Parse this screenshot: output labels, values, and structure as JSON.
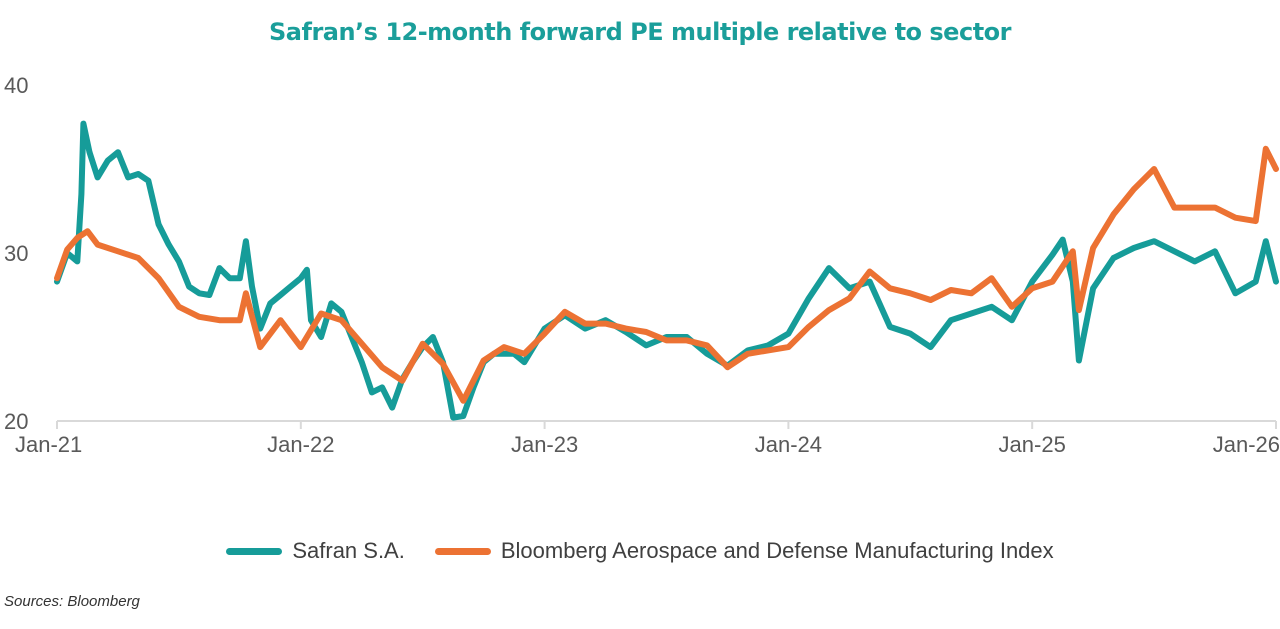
{
  "chart_data": {
    "type": "line",
    "title": "Safran’s 12-month forward PE multiple relative to sector",
    "xlabel": "",
    "ylabel": "",
    "ylim": [
      20,
      40
    ],
    "xlim": [
      "2021-01",
      "2026-01"
    ],
    "y_ticks": [
      "20",
      "30",
      "40"
    ],
    "x_ticks": [
      {
        "label": "Jan-21",
        "date": "2021-01"
      },
      {
        "label": "Jan-22",
        "date": "2022-01"
      },
      {
        "label": "Jan-23",
        "date": "2023-01"
      },
      {
        "label": "Jan-24",
        "date": "2024-01"
      },
      {
        "label": "Jan-25",
        "date": "2025-01"
      },
      {
        "label": "Jan-26",
        "date": "2026-01"
      }
    ],
    "grid": false,
    "legend": "bottom",
    "series": [
      {
        "name": "Safran S.A.",
        "color": "#169c99",
        "points": [
          [
            "2021-01",
            28.3
          ],
          [
            "2021-01.5",
            30.0
          ],
          [
            "2021-02",
            29.5
          ],
          [
            "2021-02.2",
            33.5
          ],
          [
            "2021-02.3",
            37.7
          ],
          [
            "2021-02.6",
            36.0
          ],
          [
            "2021-03",
            34.5
          ],
          [
            "2021-03.5",
            35.5
          ],
          [
            "2021-04",
            36.0
          ],
          [
            "2021-04.5",
            34.5
          ],
          [
            "2021-05",
            34.7
          ],
          [
            "2021-05.5",
            34.3
          ],
          [
            "2021-06",
            31.7
          ],
          [
            "2021-06.5",
            30.5
          ],
          [
            "2021-07",
            29.5
          ],
          [
            "2021-07.5",
            28.0
          ],
          [
            "2021-08",
            27.6
          ],
          [
            "2021-08.5",
            27.5
          ],
          [
            "2021-09",
            29.1
          ],
          [
            "2021-09.5",
            28.5
          ],
          [
            "2021-10",
            28.5
          ],
          [
            "2021-10.3",
            30.7
          ],
          [
            "2021-10.6",
            28.0
          ],
          [
            "2021-11",
            25.5
          ],
          [
            "2021-11.5",
            27.0
          ],
          [
            "2021-12",
            27.5
          ],
          [
            "2021-12.5",
            28.0
          ],
          [
            "2022-01",
            28.5
          ],
          [
            "2022-01.3",
            29.0
          ],
          [
            "2022-01.5",
            26.0
          ],
          [
            "2022-02",
            25.0
          ],
          [
            "2022-02.5",
            27.0
          ],
          [
            "2022-03",
            26.5
          ],
          [
            "2022-03.5",
            25.0
          ],
          [
            "2022-04",
            23.5
          ],
          [
            "2022-04.5",
            21.7
          ],
          [
            "2022-05",
            22.0
          ],
          [
            "2022-05.5",
            20.8
          ],
          [
            "2022-06",
            22.5
          ],
          [
            "2022-06.5",
            23.5
          ],
          [
            "2022-07",
            24.4
          ],
          [
            "2022-07.5",
            25.0
          ],
          [
            "2022-08",
            23.5
          ],
          [
            "2022-08.5",
            20.2
          ],
          [
            "2022-09",
            20.3
          ],
          [
            "2022-09.5",
            22.0
          ],
          [
            "2022-10",
            23.5
          ],
          [
            "2022-10.5",
            24.0
          ],
          [
            "2022-11",
            24.0
          ],
          [
            "2022-11.5",
            24.0
          ],
          [
            "2022-12",
            23.5
          ],
          [
            "2023-01",
            25.5
          ],
          [
            "2023-02",
            26.3
          ],
          [
            "2023-03",
            25.5
          ],
          [
            "2023-04",
            26.0
          ],
          [
            "2023-05",
            25.3
          ],
          [
            "2023-06",
            24.5
          ],
          [
            "2023-07",
            25.0
          ],
          [
            "2023-08",
            25.0
          ],
          [
            "2023-09",
            24.0
          ],
          [
            "2023-10",
            23.3
          ],
          [
            "2023-11",
            24.2
          ],
          [
            "2023-12",
            24.5
          ],
          [
            "2024-01",
            25.2
          ],
          [
            "2024-02",
            27.3
          ],
          [
            "2024-03",
            29.1
          ],
          [
            "2024-04",
            27.9
          ],
          [
            "2024-05",
            28.3
          ],
          [
            "2024-06",
            25.6
          ],
          [
            "2024-07",
            25.2
          ],
          [
            "2024-08",
            24.4
          ],
          [
            "2024-09",
            26.0
          ],
          [
            "2024-10",
            26.4
          ],
          [
            "2024-11",
            26.8
          ],
          [
            "2024-12",
            26.0
          ],
          [
            "2025-01",
            28.3
          ],
          [
            "2025-02",
            29.9
          ],
          [
            "2025-02.5",
            30.8
          ],
          [
            "2025-03",
            28.3
          ],
          [
            "2025-03.3",
            23.6
          ],
          [
            "2025-04",
            27.9
          ],
          [
            "2025-05",
            29.7
          ],
          [
            "2025-06",
            30.3
          ],
          [
            "2025-07",
            30.7
          ],
          [
            "2025-08",
            30.1
          ],
          [
            "2025-09",
            29.5
          ],
          [
            "2025-10",
            30.1
          ],
          [
            "2025-11",
            27.6
          ],
          [
            "2025-12",
            28.3
          ],
          [
            "2025-12.5",
            30.7
          ],
          [
            "2026-01",
            28.3
          ]
        ]
      },
      {
        "name": "Bloomberg Aerospace and Defense Manufacturing Index",
        "color": "#ec7233",
        "points": [
          [
            "2021-01",
            28.5
          ],
          [
            "2021-01.5",
            30.2
          ],
          [
            "2021-02",
            30.9
          ],
          [
            "2021-02.5",
            31.3
          ],
          [
            "2021-03",
            30.5
          ],
          [
            "2021-04",
            30.1
          ],
          [
            "2021-05",
            29.7
          ],
          [
            "2021-06",
            28.5
          ],
          [
            "2021-07",
            26.8
          ],
          [
            "2021-08",
            26.2
          ],
          [
            "2021-09",
            26.0
          ],
          [
            "2021-10",
            26.0
          ],
          [
            "2021-10.3",
            27.6
          ],
          [
            "2021-11",
            24.4
          ],
          [
            "2021-12",
            26.0
          ],
          [
            "2022-01",
            24.4
          ],
          [
            "2022-02",
            26.4
          ],
          [
            "2022-03",
            26.0
          ],
          [
            "2022-04",
            24.6
          ],
          [
            "2022-05",
            23.2
          ],
          [
            "2022-06",
            22.4
          ],
          [
            "2022-07",
            24.6
          ],
          [
            "2022-08",
            23.4
          ],
          [
            "2022-09",
            21.2
          ],
          [
            "2022-10",
            23.6
          ],
          [
            "2022-11",
            24.4
          ],
          [
            "2022-12",
            24.0
          ],
          [
            "2023-01",
            25.2
          ],
          [
            "2023-02",
            26.5
          ],
          [
            "2023-03",
            25.8
          ],
          [
            "2023-04",
            25.8
          ],
          [
            "2023-05",
            25.5
          ],
          [
            "2023-06",
            25.3
          ],
          [
            "2023-07",
            24.8
          ],
          [
            "2023-08",
            24.8
          ],
          [
            "2023-09",
            24.5
          ],
          [
            "2023-10",
            23.2
          ],
          [
            "2023-11",
            24.0
          ],
          [
            "2023-12",
            24.2
          ],
          [
            "2024-01",
            24.4
          ],
          [
            "2024-02",
            25.6
          ],
          [
            "2024-03",
            26.6
          ],
          [
            "2024-04",
            27.3
          ],
          [
            "2024-05",
            28.9
          ],
          [
            "2024-06",
            27.9
          ],
          [
            "2024-07",
            27.6
          ],
          [
            "2024-08",
            27.2
          ],
          [
            "2024-09",
            27.8
          ],
          [
            "2024-10",
            27.6
          ],
          [
            "2024-11",
            28.5
          ],
          [
            "2024-12",
            26.8
          ],
          [
            "2025-01",
            27.9
          ],
          [
            "2025-02",
            28.3
          ],
          [
            "2025-03",
            30.1
          ],
          [
            "2025-03.3",
            26.6
          ],
          [
            "2025-04",
            30.3
          ],
          [
            "2025-05",
            32.3
          ],
          [
            "2025-06",
            33.8
          ],
          [
            "2025-07",
            35.0
          ],
          [
            "2025-08",
            32.7
          ],
          [
            "2025-09",
            32.7
          ],
          [
            "2025-10",
            32.7
          ],
          [
            "2025-11",
            32.1
          ],
          [
            "2025-12",
            31.9
          ],
          [
            "2025-12.5",
            36.2
          ],
          [
            "2026-01",
            35.0
          ]
        ]
      }
    ]
  },
  "source": "Sources: Bloomberg"
}
